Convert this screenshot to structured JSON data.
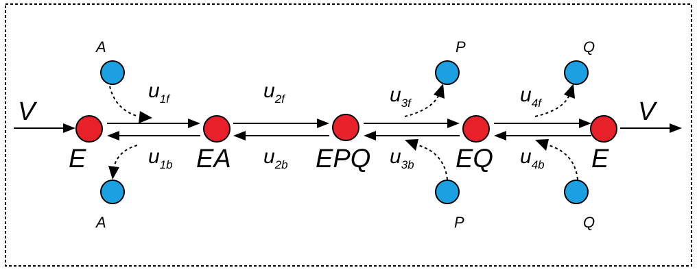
{
  "diagram": {
    "input_label": "V",
    "output_label": "V",
    "nodes": [
      {
        "id": "E1",
        "label": "E"
      },
      {
        "id": "EA",
        "label": "EA"
      },
      {
        "id": "EPQ",
        "label": "EPQ"
      },
      {
        "id": "EQ",
        "label": "EQ"
      },
      {
        "id": "E2",
        "label": "E"
      }
    ],
    "species": {
      "A_in": "A",
      "A_out": "A",
      "P_out": "P",
      "P_in": "P",
      "Q_out": "Q",
      "Q_in": "Q"
    },
    "rates": [
      {
        "forward": "u",
        "forward_sub": "1f",
        "backward": "u",
        "backward_sub": "1b"
      },
      {
        "forward": "u",
        "forward_sub": "2f",
        "backward": "u",
        "backward_sub": "2b"
      },
      {
        "forward": "u",
        "forward_sub": "3f",
        "backward": "u",
        "backward_sub": "3b"
      },
      {
        "forward": "u",
        "forward_sub": "4f",
        "backward": "u",
        "backward_sub": "4b"
      }
    ],
    "colors": {
      "enzyme_node": "#e8202a",
      "species_node": "#1ba1e2",
      "stroke": "#000000"
    }
  }
}
